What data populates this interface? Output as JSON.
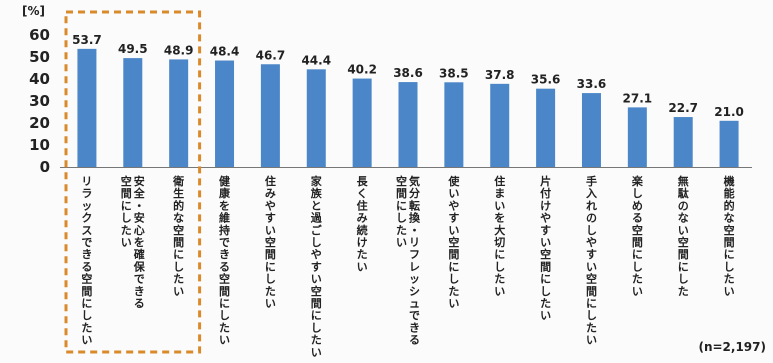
{
  "chart_data": {
    "type": "bar",
    "unit_label": "[%]",
    "note": "(n=2,197)",
    "ylim": [
      0,
      60
    ],
    "yticks": [
      0,
      10,
      20,
      30,
      40,
      50,
      60
    ],
    "grid": false,
    "highlight_indices": [
      0,
      1,
      2
    ],
    "colors": {
      "bar": "#4a86c8",
      "highlight_box": "#d98a2b",
      "axis": "#777777"
    },
    "categories": [
      [
        "リラックスできる空間にしたい"
      ],
      [
        "安全・安心を確保できる",
        "空間にしたい"
      ],
      [
        "衛生的な空間にしたい"
      ],
      [
        "健康を維持できる空間にしたい"
      ],
      [
        "住みやすい空間にしたい"
      ],
      [
        "家族と過ごしやすい空間にしたい"
      ],
      [
        "長く住み続けたい"
      ],
      [
        "気分転換・リフレッシュできる",
        "空間にしたい"
      ],
      [
        "使いやすい空間にしたい"
      ],
      [
        "住まいを大切にしたい"
      ],
      [
        "片付けやすい空間にしたい"
      ],
      [
        "手入れのしやすい空間にしたい"
      ],
      [
        "楽しめる空間にしたい"
      ],
      [
        "無駄のない空間にした"
      ],
      [
        "機能的な空間にしたい"
      ]
    ],
    "values": [
      53.7,
      49.5,
      48.9,
      48.4,
      46.7,
      44.4,
      40.2,
      38.6,
      38.5,
      37.8,
      35.6,
      33.6,
      27.1,
      22.7,
      21.0
    ],
    "value_labels": [
      "53.7",
      "49.5",
      "48.9",
      "48.4",
      "46.7",
      "44.4",
      "40.2",
      "38.6",
      "38.5",
      "37.8",
      "35.6",
      "33.6",
      "27.1",
      "22.7",
      "21.0"
    ]
  }
}
